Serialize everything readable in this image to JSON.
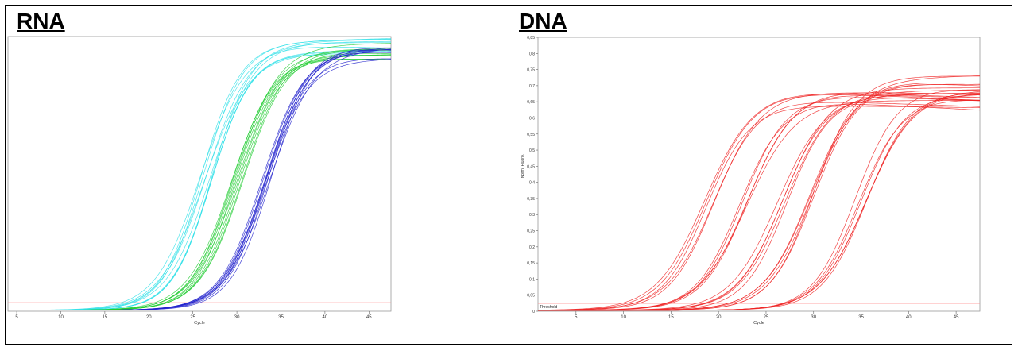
{
  "panels": [
    {
      "title": "RNA"
    },
    {
      "title": "DNA"
    }
  ],
  "chart_data": [
    {
      "type": "line",
      "title": "RNA",
      "xlabel": "Cycle",
      "ylabel": "",
      "xlim": [
        4,
        47.5
      ],
      "ylim": [
        0,
        0.8
      ],
      "xticks": [
        5,
        10,
        15,
        20,
        25,
        30,
        35,
        40,
        45
      ],
      "yticks": [],
      "threshold": 0.025,
      "grid": false,
      "groups": [
        {
          "color": "#33e0e8",
          "midpoint": 26.5,
          "plateau": 0.76,
          "count": 10
        },
        {
          "color": "#22cc33",
          "midpoint": 30.0,
          "plateau": 0.755,
          "count": 10
        },
        {
          "color": "#2222cc",
          "midpoint": 33.5,
          "plateau": 0.75,
          "count": 10
        }
      ]
    },
    {
      "type": "line",
      "title": "DNA",
      "xlabel": "Cycle",
      "ylabel": "Norm. Fluoro.",
      "xlim": [
        1,
        47.5
      ],
      "ylim": [
        0,
        0.85
      ],
      "xticks": [
        5,
        10,
        15,
        20,
        25,
        30,
        35,
        40,
        45
      ],
      "yticks": [
        "0",
        "0,05",
        "0,1",
        "0,15",
        "0,2",
        "0,25",
        "0,3",
        "0,35",
        "0,4",
        "0,45",
        "0,5",
        "0,55",
        "0,6",
        "0,65",
        "0,7",
        "0,75",
        "0,8",
        "0,85"
      ],
      "threshold": 0.025,
      "threshold_label": "Threshold",
      "grid": false,
      "groups": [
        {
          "color": "#ee2222",
          "midpoint": 19.0,
          "plateau": 0.66,
          "count": 5
        },
        {
          "color": "#ee2222",
          "midpoint": 22.5,
          "plateau": 0.67,
          "count": 5
        },
        {
          "color": "#ee2222",
          "midpoint": 26.5,
          "plateau": 0.69,
          "count": 5
        },
        {
          "color": "#ee2222",
          "midpoint": 29.5,
          "plateau": 0.71,
          "count": 5
        },
        {
          "color": "#ee2222",
          "midpoint": 35.0,
          "plateau": 0.68,
          "count": 6
        }
      ]
    }
  ]
}
